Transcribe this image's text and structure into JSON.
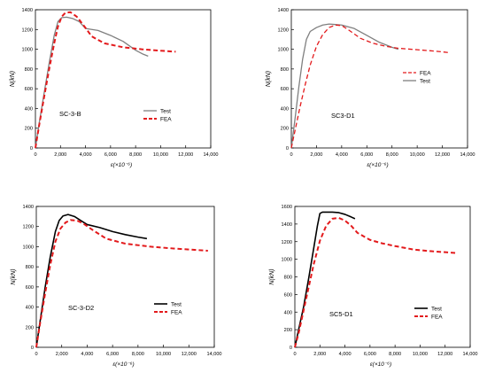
{
  "chart_data": [
    {
      "type": "line",
      "xlabel": "ε(×10⁻⁶)",
      "ylabel": "N(kN)",
      "xlim": [
        0,
        14000
      ],
      "ylim": [
        0,
        1400
      ],
      "xticks": [
        "0",
        "2,000",
        "4,000",
        "6,000",
        "8,000",
        "10,000",
        "12,000",
        "14,000"
      ],
      "yticks": [
        "0",
        "200",
        "400",
        "600",
        "800",
        "1000",
        "1200",
        "1400"
      ],
      "annotation": "SC-3-B",
      "legend_position": "bottom-right",
      "legend_order": [
        "Test",
        "FEA"
      ],
      "series": [
        {
          "name": "Test",
          "color": "#7f7f7f",
          "dash": "solid",
          "width": 1.3,
          "x": [
            0,
            300,
            700,
            1100,
            1500,
            1800,
            2100,
            2500,
            3000,
            3500,
            4000,
            5000,
            6000,
            7000,
            8000,
            8600,
            9000
          ],
          "y": [
            0,
            250,
            560,
            860,
            1140,
            1280,
            1320,
            1325,
            1310,
            1280,
            1210,
            1190,
            1140,
            1080,
            990,
            950,
            930
          ]
        },
        {
          "name": "FEA",
          "color": "#e31a1c",
          "dash": "dash",
          "width": 2,
          "x": [
            0,
            300,
            700,
            1100,
            1500,
            1800,
            2100,
            2400,
            2800,
            3300,
            3800,
            4500,
            5500,
            7000,
            8500,
            10000,
            11200
          ],
          "y": [
            0,
            230,
            520,
            800,
            1060,
            1230,
            1330,
            1370,
            1375,
            1330,
            1250,
            1130,
            1060,
            1020,
            1000,
            985,
            975
          ]
        }
      ]
    },
    {
      "type": "line",
      "xlabel": "ε(×10⁻⁶)",
      "ylabel": "N(kN)",
      "xlim": [
        0,
        14000
      ],
      "ylim": [
        0,
        1400
      ],
      "xticks": [
        "0",
        "2,000",
        "4,000",
        "6,000",
        "8,000",
        "10,000",
        "12,000",
        "14,000"
      ],
      "yticks": [
        "0",
        "200",
        "400",
        "600",
        "800",
        "1000",
        "1200",
        "1400"
      ],
      "annotation": "SC3-D1",
      "legend_position": "middle-right",
      "legend_order": [
        "FEA",
        "Test"
      ],
      "series": [
        {
          "name": "Test",
          "color": "#7f7f7f",
          "dash": "solid",
          "width": 1.3,
          "x": [
            0,
            300,
            600,
            900,
            1200,
            1500,
            2000,
            2500,
            3000,
            3500,
            4000,
            5000,
            6000,
            7000,
            8000,
            8500
          ],
          "y": [
            0,
            300,
            620,
            900,
            1100,
            1180,
            1220,
            1245,
            1255,
            1250,
            1245,
            1210,
            1140,
            1070,
            1020,
            1000
          ]
        },
        {
          "name": "FEA",
          "color": "#e31a1c",
          "dash": "dash",
          "width": 1.3,
          "x": [
            0,
            300,
            700,
            1100,
            1500,
            2000,
            2500,
            3000,
            3500,
            4000,
            4500,
            5500,
            6500,
            7500,
            8500,
            10000,
            11500,
            12600
          ],
          "y": [
            0,
            180,
            420,
            640,
            840,
            1030,
            1150,
            1220,
            1245,
            1240,
            1200,
            1110,
            1060,
            1030,
            1010,
            995,
            980,
            965
          ]
        }
      ]
    },
    {
      "type": "line",
      "xlabel": "ε(×10⁻⁶)",
      "ylabel": "N(kN)",
      "xlim": [
        0,
        14000
      ],
      "ylim": [
        0,
        1400
      ],
      "xticks": [
        "0",
        "2,000",
        "4,000",
        "6,000",
        "8,000",
        "10,000",
        "12,000",
        "14,000"
      ],
      "yticks": [
        "0",
        "200",
        "400",
        "600",
        "800",
        "1000",
        "1200",
        "1400"
      ],
      "annotation": "SC-3-D2",
      "legend_position": "bottom-right",
      "legend_order": [
        "Test",
        "FEA"
      ],
      "series": [
        {
          "name": "Test",
          "color": "#000000",
          "dash": "solid",
          "width": 1.6,
          "x": [
            0,
            300,
            700,
            1100,
            1500,
            1800,
            2100,
            2500,
            3000,
            3500,
            4000,
            5000,
            6000,
            7000,
            8000,
            8700
          ],
          "y": [
            0,
            260,
            600,
            900,
            1150,
            1260,
            1305,
            1320,
            1300,
            1260,
            1220,
            1190,
            1150,
            1120,
            1095,
            1080
          ]
        },
        {
          "name": "FEA",
          "color": "#e31a1c",
          "dash": "dash",
          "width": 2,
          "x": [
            0,
            300,
            700,
            1100,
            1500,
            1900,
            2300,
            2700,
            3200,
            3700,
            4500,
            5500,
            7000,
            9000,
            11000,
            13500
          ],
          "y": [
            0,
            240,
            540,
            820,
            1050,
            1180,
            1240,
            1265,
            1260,
            1230,
            1160,
            1080,
            1030,
            1000,
            980,
            960
          ]
        }
      ]
    },
    {
      "type": "line",
      "xlabel": "ε(×10⁻⁶)",
      "ylabel": "N(kN)",
      "xlim": [
        0,
        14000
      ],
      "ylim": [
        0,
        1600
      ],
      "xticks": [
        "0",
        "2,000",
        "4,000",
        "6,000",
        "8,000",
        "10,000",
        "12,000",
        "14,000"
      ],
      "yticks": [
        "0",
        "200",
        "400",
        "600",
        "800",
        "1000",
        "1200",
        "1400",
        "1600"
      ],
      "annotation": "SC5-D1",
      "legend_position": "bottom-right",
      "legend_order": [
        "Test",
        "FEA"
      ],
      "series": [
        {
          "name": "Test",
          "color": "#000000",
          "dash": "solid",
          "width": 1.6,
          "x": [
            0,
            300,
            700,
            1100,
            1500,
            1800,
            2000,
            2200,
            2500,
            3000,
            3500,
            4000,
            4500,
            4800
          ],
          "y": [
            0,
            200,
            460,
            780,
            1120,
            1380,
            1520,
            1535,
            1535,
            1535,
            1530,
            1510,
            1480,
            1460
          ]
        },
        {
          "name": "FEA",
          "color": "#e31a1c",
          "dash": "dash",
          "width": 2,
          "x": [
            0,
            300,
            700,
            1100,
            1500,
            2000,
            2500,
            3000,
            3500,
            4000,
            4500,
            5000,
            6000,
            7000,
            8000,
            9500,
            11000,
            13000
          ],
          "y": [
            0,
            160,
            420,
            680,
            940,
            1210,
            1380,
            1460,
            1470,
            1440,
            1380,
            1300,
            1220,
            1180,
            1150,
            1110,
            1090,
            1070
          ]
        }
      ]
    }
  ]
}
